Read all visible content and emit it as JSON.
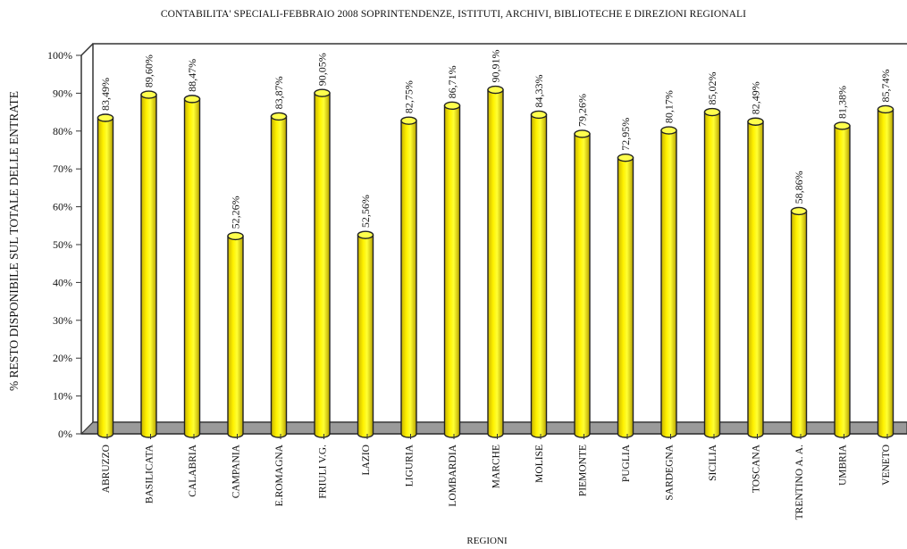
{
  "chart_data": {
    "type": "bar",
    "title": "CONTABILITA' SPECIALI-FEBBRAIO 2008  SOPRINTENDENZE, ISTITUTI, ARCHIVI, BIBLIOTECHE E DIREZIONI REGIONALI",
    "xlabel": "REGIONI",
    "ylabel": "% RESTO DISPONIBILE SUL TOTALE DELLE ENTRATE",
    "ylim": [
      0,
      100
    ],
    "yticks": [
      "0%",
      "10%",
      "20%",
      "30%",
      "40%",
      "50%",
      "60%",
      "70%",
      "80%",
      "90%",
      "100%"
    ],
    "categories": [
      "ABRUZZO",
      "BASILICATA",
      "CALABRIA",
      "CAMPANIA",
      "E.ROMAGNA",
      "FRIULI V.G.",
      "LAZIO",
      "LIGURIA",
      "LOMBARDIA",
      "MARCHE",
      "MOLISE",
      "PIEMONTE",
      "PUGLIA",
      "SARDEGNA",
      "SICILIA",
      "TOSCANA",
      "TRENTINO A. A.",
      "UMBRIA",
      "VENETO"
    ],
    "values": [
      83.49,
      89.6,
      88.47,
      52.26,
      83.87,
      90.05,
      52.56,
      82.75,
      86.71,
      90.91,
      84.33,
      79.26,
      72.95,
      80.17,
      85.02,
      82.49,
      58.86,
      81.38,
      85.74
    ],
    "data_labels": [
      "83,49%",
      "89,60%",
      "88,47%",
      "52,26%",
      "83,87%",
      "90,05%",
      "52,56%",
      "82,75%",
      "86,71%",
      "90,91%",
      "84,33%",
      "79,26%",
      "72,95%",
      "80,17%",
      "85,02%",
      "82,49%",
      "58,86%",
      "81,38%",
      "85,74%"
    ],
    "bar_color": "#ffff00",
    "grid": false,
    "legend": "none"
  }
}
